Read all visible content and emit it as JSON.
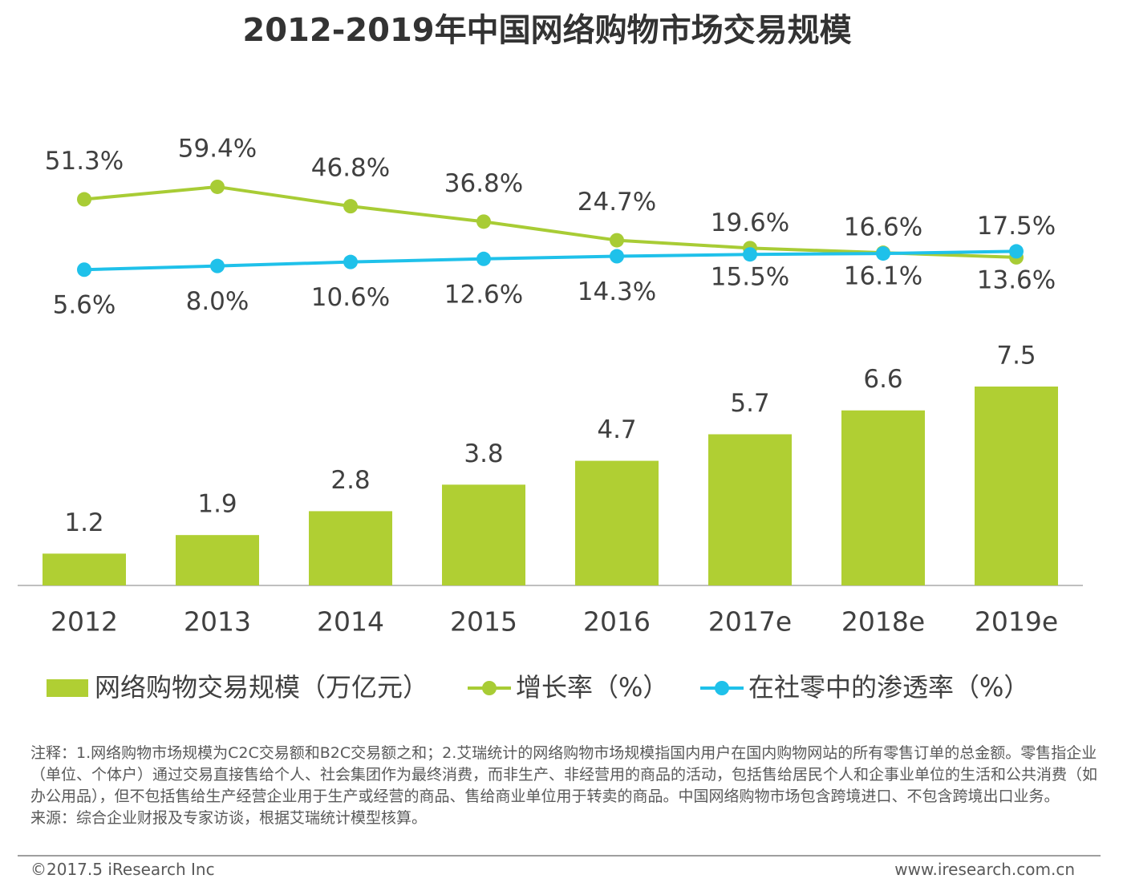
{
  "chart_data": {
    "type": "bar",
    "title": "2012-2019年中国网络购物市场交易规模",
    "categories": [
      "2012",
      "2013",
      "2014",
      "2015",
      "2016",
      "2017e",
      "2018e",
      "2019e"
    ],
    "series": [
      {
        "name": "网络购物交易规模（万亿元）",
        "type": "bar",
        "color": "#b0cf33",
        "values": [
          1.2,
          1.9,
          2.8,
          3.8,
          4.7,
          5.7,
          6.6,
          7.5
        ]
      },
      {
        "name": "增长率（%）",
        "type": "line",
        "color": "#a8cc35",
        "values": [
          51.3,
          59.4,
          46.8,
          36.8,
          24.7,
          19.6,
          16.6,
          13.6
        ],
        "value_labels": [
          "51.3%",
          "59.4%",
          "46.8%",
          "36.8%",
          "24.7%",
          "19.6%",
          "16.6%",
          "13.6%"
        ]
      },
      {
        "name": "在社零中的渗透率（%）",
        "type": "line",
        "color": "#1fc1ea",
        "values": [
          5.6,
          8.0,
          10.6,
          12.6,
          14.3,
          15.5,
          16.1,
          17.5
        ],
        "value_labels": [
          "5.6%",
          "8.0%",
          "10.6%",
          "12.6%",
          "14.3%",
          "15.5%",
          "16.1%",
          "17.5%"
        ]
      }
    ]
  },
  "notes": [
    "注释：1.网络购物市场规模为C2C交易额和B2C交易额之和；2.艾瑞统计的网络购物市场规模指国内用户在国内购物网站的所有零售订单的总金额。零售指企业（单位、个体户）通过交易直接售给个人、社会集团作为最终消费，而非生产、非经营用的商品的活动，包括售给居民个人和企事业单位的生活和公共消费（如办公用品），但不包括售给生产经营企业用于生产或经营的商品、售给商业单位用于转卖的商品。中国网络购物市场包含跨境进口、不包含跨境出口业务。",
    "来源：综合企业财报及专家访谈，根据艾瑞统计模型核算。"
  ],
  "footer": {
    "left": "©2017.5 iResearch Inc",
    "right": "www.iresearch.com.cn"
  }
}
